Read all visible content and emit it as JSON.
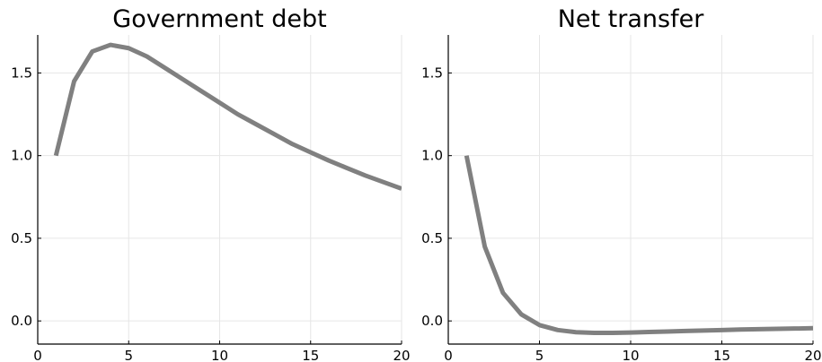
{
  "chart_data": [
    {
      "type": "line",
      "title": "Government debt",
      "xlabel": "",
      "ylabel": "",
      "xlim": [
        0,
        20
      ],
      "ylim": [
        -0.14,
        1.73
      ],
      "xticks": [
        "0",
        "5",
        "10",
        "15",
        "20"
      ],
      "yticks": [
        "0.0",
        "0.5",
        "1.0",
        "1.5"
      ],
      "grid": true,
      "legend": "none",
      "color": "#808080",
      "series": [
        {
          "x": [
            1,
            2,
            3,
            4,
            5,
            6,
            7,
            8,
            9,
            10,
            11,
            12,
            13,
            14,
            15,
            16,
            17,
            18,
            19,
            20
          ],
          "values": [
            1.0,
            1.45,
            1.63,
            1.67,
            1.65,
            1.6,
            1.53,
            1.46,
            1.39,
            1.32,
            1.25,
            1.19,
            1.13,
            1.07,
            1.02,
            0.97,
            0.925,
            0.88,
            0.84,
            0.8
          ]
        }
      ]
    },
    {
      "type": "line",
      "title": "Net transfer",
      "xlabel": "",
      "ylabel": "",
      "xlim": [
        0,
        20
      ],
      "ylim": [
        -0.14,
        1.73
      ],
      "xticks": [
        "0",
        "5",
        "10",
        "15",
        "20"
      ],
      "yticks": [
        "0.0",
        "0.5",
        "1.0",
        "1.5"
      ],
      "grid": true,
      "legend": "none",
      "color": "#808080",
      "series": [
        {
          "x": [
            1,
            2,
            3,
            4,
            5,
            6,
            7,
            8,
            9,
            10,
            11,
            12,
            13,
            14,
            15,
            16,
            17,
            18,
            19,
            20
          ],
          "values": [
            1.0,
            0.45,
            0.17,
            0.04,
            -0.025,
            -0.055,
            -0.068,
            -0.072,
            -0.072,
            -0.07,
            -0.067,
            -0.064,
            -0.061,
            -0.058,
            -0.055,
            -0.052,
            -0.05,
            -0.048,
            -0.046,
            -0.044
          ]
        }
      ]
    }
  ]
}
